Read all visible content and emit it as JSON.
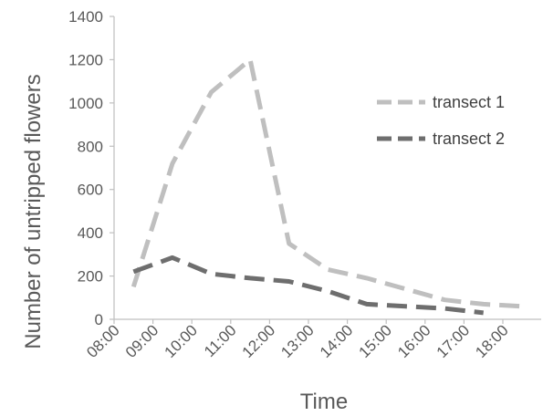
{
  "chart_data": {
    "type": "line",
    "xlabel": "Time",
    "ylabel": "Number of untripped flowers",
    "ylim": [
      0,
      1400
    ],
    "yticks": [
      0,
      200,
      400,
      600,
      800,
      1000,
      1200,
      1400
    ],
    "xlim": [
      "08:00",
      "18:00"
    ],
    "xticks": [
      "08:00",
      "09:00",
      "10:00",
      "11:00",
      "12:00",
      "13:00",
      "14:00",
      "15:00",
      "16:00",
      "17:00",
      "18:00"
    ],
    "grid": false,
    "legend_position": "right",
    "series": [
      {
        "name": "transect 1",
        "color": "#bfbfbf",
        "dash": "dashed",
        "points": [
          {
            "x": "08:30",
            "y": 150
          },
          {
            "x": "09:30",
            "y": 720
          },
          {
            "x": "10:30",
            "y": 1050
          },
          {
            "x": "11:30",
            "y": 1200
          },
          {
            "x": "12:30",
            "y": 350
          },
          {
            "x": "13:30",
            "y": 230
          },
          {
            "x": "14:30",
            "y": 190
          },
          {
            "x": "15:30",
            "y": 140
          },
          {
            "x": "16:30",
            "y": 90
          },
          {
            "x": "17:30",
            "y": 70
          },
          {
            "x": "18:30",
            "y": 60
          }
        ]
      },
      {
        "name": "transect 2",
        "color": "#6e6e6e",
        "dash": "dashed",
        "points": [
          {
            "x": "08:30",
            "y": 220
          },
          {
            "x": "09:30",
            "y": 285
          },
          {
            "x": "10:30",
            "y": 210
          },
          {
            "x": "11:30",
            "y": 190
          },
          {
            "x": "12:30",
            "y": 175
          },
          {
            "x": "13:30",
            "y": 130
          },
          {
            "x": "14:30",
            "y": 70
          },
          {
            "x": "15:30",
            "y": 60
          },
          {
            "x": "16:30",
            "y": 50
          },
          {
            "x": "17:30",
            "y": 30
          }
        ]
      }
    ]
  }
}
